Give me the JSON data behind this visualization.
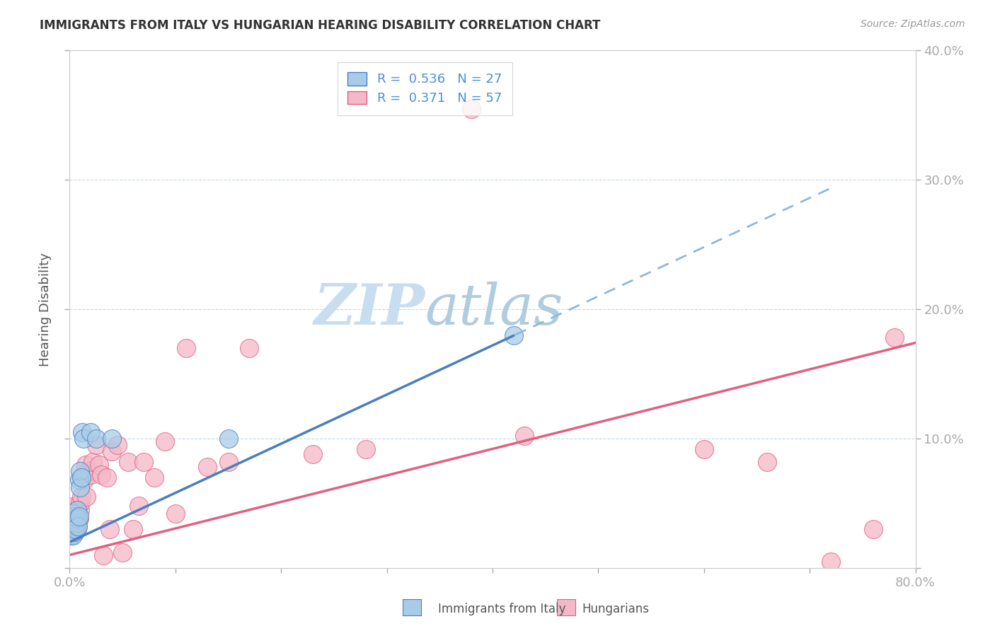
{
  "title": "IMMIGRANTS FROM ITALY VS HUNGARIAN HEARING DISABILITY CORRELATION CHART",
  "source": "Source: ZipAtlas.com",
  "ylabel": "Hearing Disability",
  "xlim": [
    0,
    0.8
  ],
  "ylim": [
    0,
    0.4
  ],
  "color_blue": "#a8cce8",
  "color_pink": "#f4b8c8",
  "color_blue_line": "#4a7fc0",
  "color_pink_line": "#e06080",
  "color_blue_dashed": "#90b8d8",
  "watermark_color": "#d8eaf5",
  "blue_regression_slope": 0.38,
  "blue_regression_intercept": 0.02,
  "blue_line_xstart": 0.0,
  "blue_line_xend": 0.42,
  "blue_dashed_xstart": 0.0,
  "blue_dashed_xend": 0.72,
  "pink_regression_slope": 0.205,
  "pink_regression_intercept": 0.01,
  "pink_line_xstart": 0.0,
  "pink_line_xend": 0.8,
  "blue_x": [
    0.001,
    0.002,
    0.002,
    0.003,
    0.003,
    0.004,
    0.004,
    0.005,
    0.005,
    0.006,
    0.006,
    0.007,
    0.007,
    0.008,
    0.008,
    0.009,
    0.009,
    0.01,
    0.01,
    0.011,
    0.012,
    0.013,
    0.02,
    0.025,
    0.04,
    0.15,
    0.42
  ],
  "blue_y": [
    0.025,
    0.03,
    0.038,
    0.025,
    0.042,
    0.035,
    0.028,
    0.04,
    0.032,
    0.038,
    0.03,
    0.045,
    0.035,
    0.038,
    0.032,
    0.04,
    0.068,
    0.075,
    0.062,
    0.07,
    0.105,
    0.1,
    0.105,
    0.1,
    0.1,
    0.1,
    0.18
  ],
  "pink_x": [
    0.001,
    0.001,
    0.002,
    0.002,
    0.003,
    0.003,
    0.004,
    0.004,
    0.005,
    0.005,
    0.006,
    0.006,
    0.007,
    0.007,
    0.008,
    0.008,
    0.009,
    0.01,
    0.01,
    0.011,
    0.012,
    0.013,
    0.014,
    0.015,
    0.016,
    0.018,
    0.02,
    0.022,
    0.025,
    0.028,
    0.03,
    0.032,
    0.035,
    0.038,
    0.04,
    0.045,
    0.05,
    0.055,
    0.06,
    0.065,
    0.07,
    0.08,
    0.09,
    0.1,
    0.11,
    0.13,
    0.15,
    0.17,
    0.23,
    0.28,
    0.38,
    0.43,
    0.6,
    0.66,
    0.72,
    0.76,
    0.78
  ],
  "pink_y": [
    0.025,
    0.032,
    0.028,
    0.038,
    0.03,
    0.04,
    0.035,
    0.042,
    0.028,
    0.048,
    0.035,
    0.038,
    0.03,
    0.045,
    0.032,
    0.04,
    0.038,
    0.045,
    0.05,
    0.055,
    0.07,
    0.072,
    0.068,
    0.08,
    0.055,
    0.075,
    0.072,
    0.082,
    0.095,
    0.08,
    0.072,
    0.01,
    0.07,
    0.03,
    0.09,
    0.095,
    0.012,
    0.082,
    0.03,
    0.048,
    0.082,
    0.07,
    0.098,
    0.042,
    0.17,
    0.078,
    0.082,
    0.17,
    0.088,
    0.092,
    0.355,
    0.102,
    0.092,
    0.082,
    0.005,
    0.03,
    0.178
  ],
  "legend_R1": "0.536",
  "legend_N1": "27",
  "legend_R2": "0.371",
  "legend_N2": "57"
}
